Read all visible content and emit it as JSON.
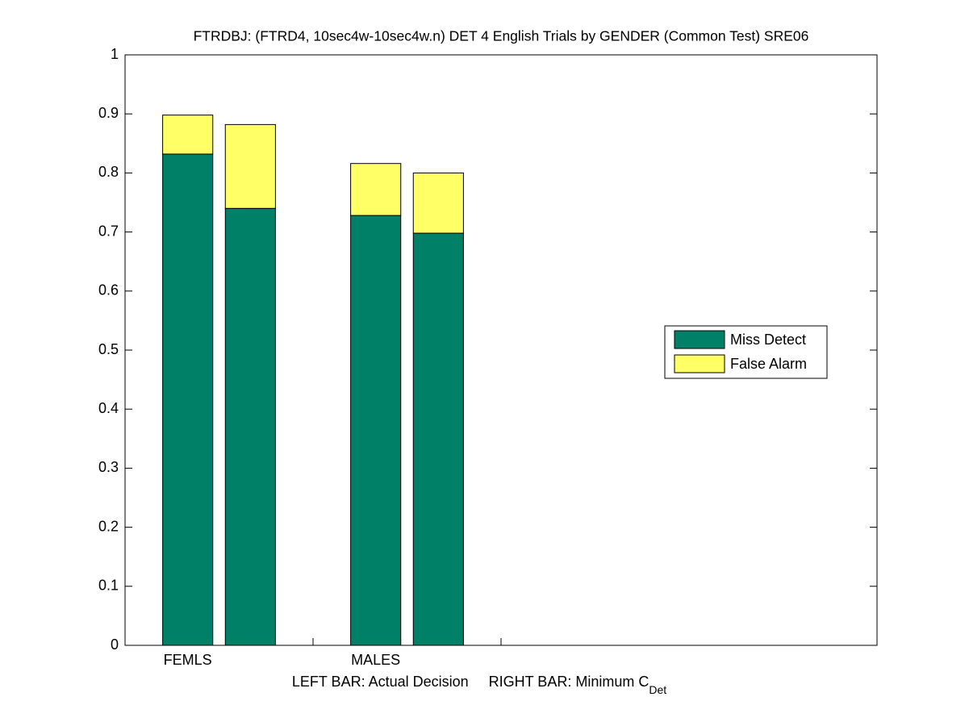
{
  "chart_data": {
    "type": "stacked_bar",
    "title": "FTRDBJ: (FTRD4, 10sec4w-10sec4w.n) DET 4 English Trials by GENDER (Common Test) SRE06",
    "xlabel": {
      "text": "LEFT BAR: Actual Decision     RIGHT BAR: Minimum C",
      "subscript": "Det"
    },
    "x": [
      1,
      2,
      4,
      5
    ],
    "bar_width": 0.8,
    "series": [
      {
        "name": "Miss Detect",
        "color": "#008066",
        "values": [
          0.832,
          0.74,
          0.728,
          0.698
        ]
      },
      {
        "name": "False Alarm",
        "color": "#ffff66",
        "values": [
          0.066,
          0.142,
          0.088,
          0.102
        ]
      }
    ],
    "xlim": [
      0,
      12
    ],
    "xticks": [
      {
        "value": 1,
        "label": "FEMLS"
      },
      {
        "value": 3,
        "label": null
      },
      {
        "value": 4,
        "label": "MALES"
      },
      {
        "value": 6,
        "label": null
      }
    ],
    "ylim": [
      0,
      1
    ],
    "yticks": [
      0,
      0.1,
      0.2,
      0.3,
      0.4,
      0.5,
      0.6,
      0.7,
      0.8,
      0.9,
      1
    ],
    "legend": "right"
  }
}
